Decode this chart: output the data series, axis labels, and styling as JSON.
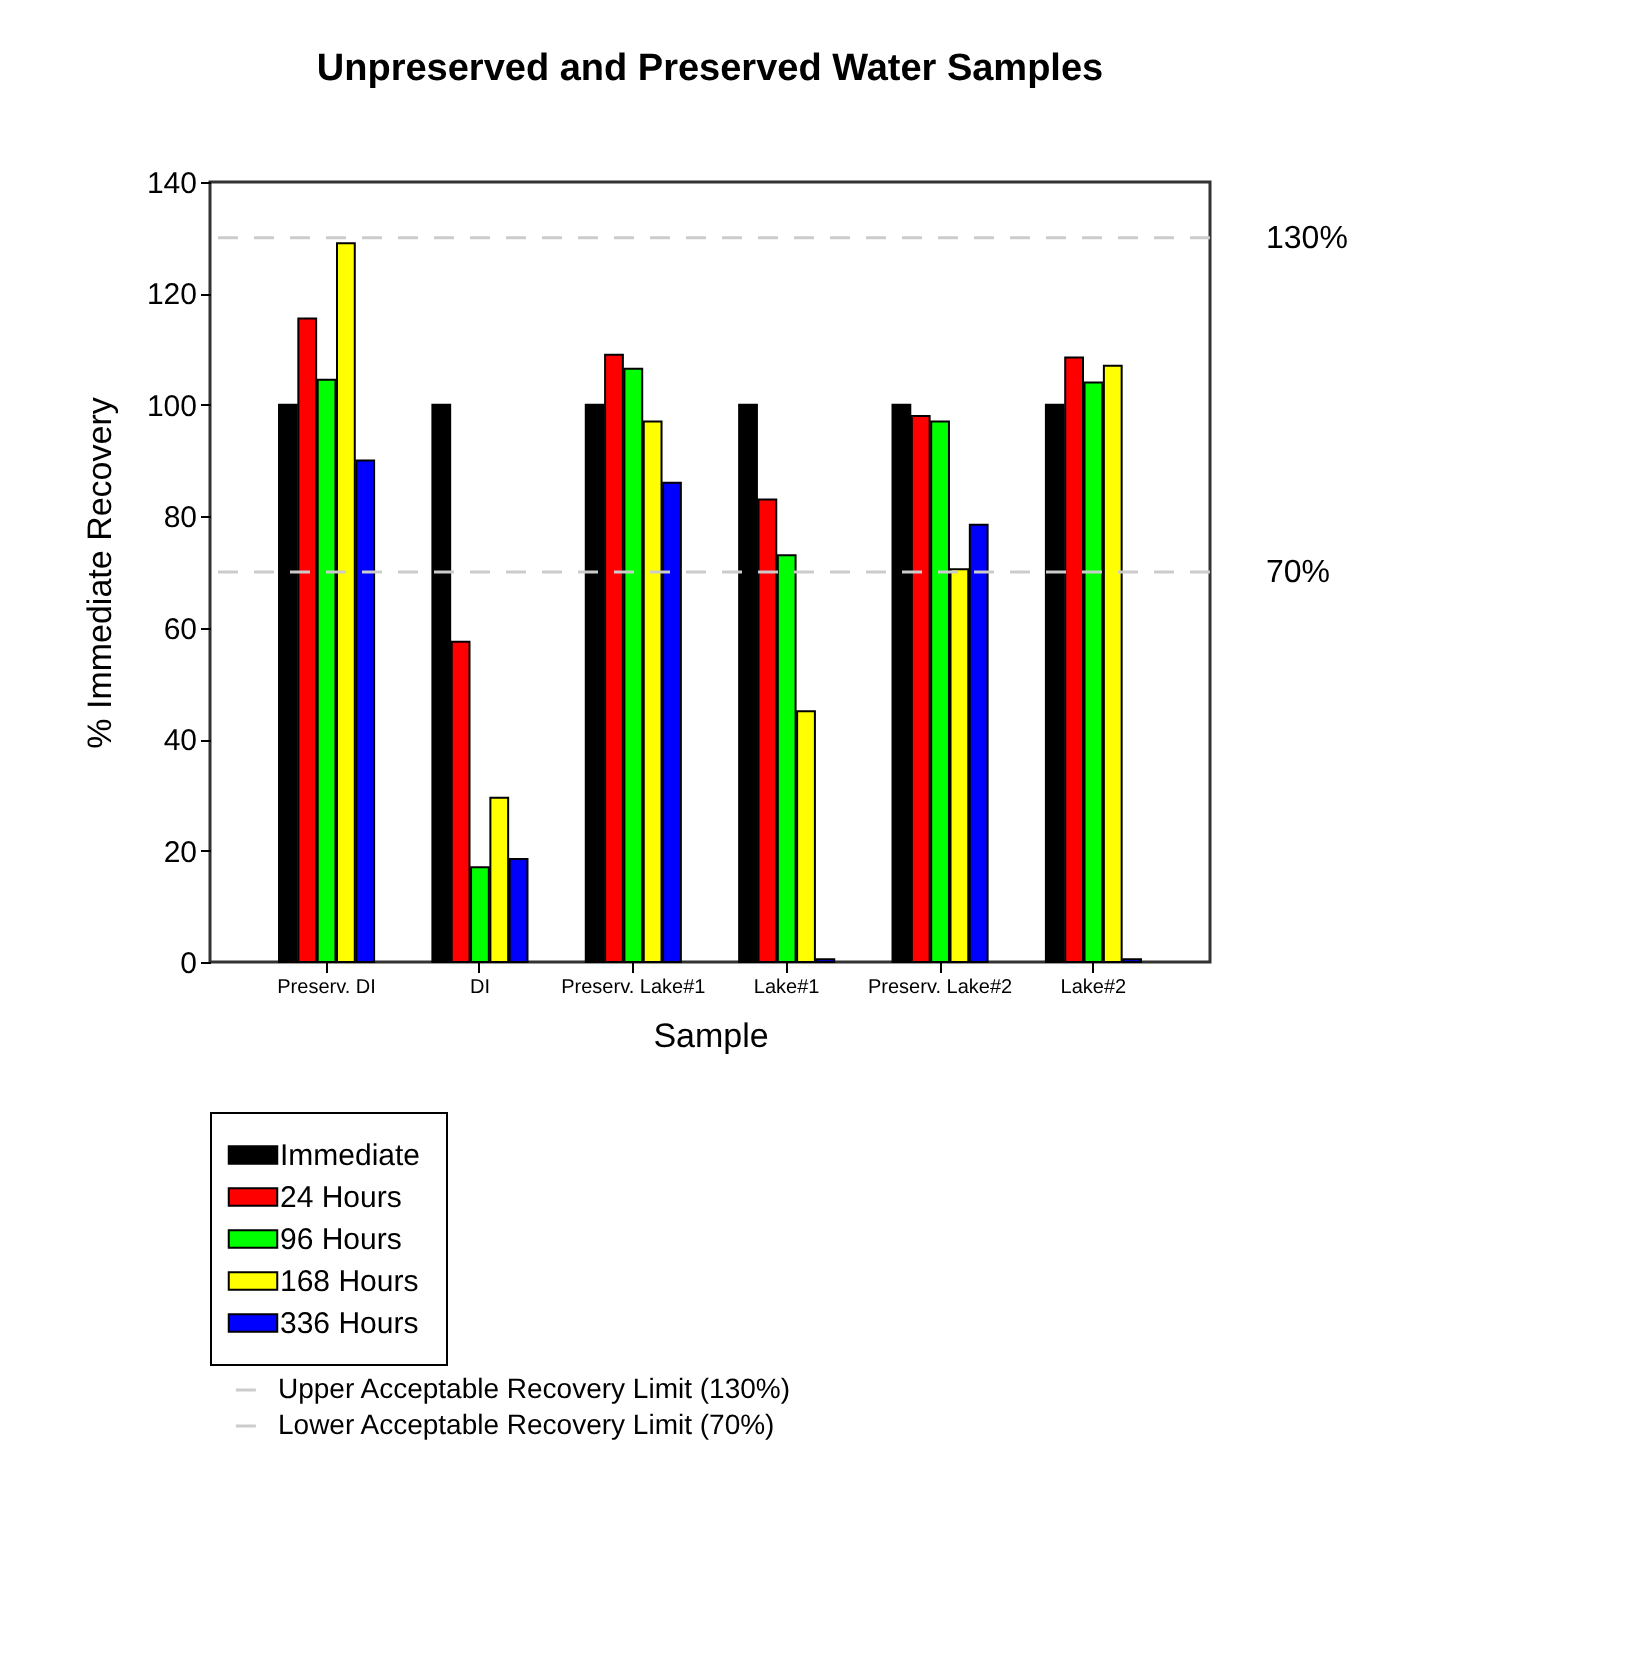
{
  "chart_data": {
    "type": "bar",
    "title": "Unpreserved and Preserved Water Samples",
    "xlabel": "Sample",
    "ylabel": "% Immediate Recovery",
    "categories": [
      "Preserv. DI",
      "DI",
      "Preserv. Lake#1",
      "Lake#1",
      "Preserv. Lake#2",
      "Lake#2"
    ],
    "series": [
      {
        "name": "Immediate",
        "color": "#000000",
        "values": [
          100,
          100,
          100,
          100,
          100,
          100
        ]
      },
      {
        "name": "24 Hours",
        "color": "#ff0000",
        "values": [
          115.5,
          57.5,
          109,
          83,
          98,
          108.5
        ]
      },
      {
        "name": "96 Hours",
        "color": "#00ff00",
        "values": [
          104.5,
          17,
          106.5,
          73,
          97,
          104
        ]
      },
      {
        "name": "168 Hours",
        "color": "#ffff00",
        "values": [
          129,
          29.5,
          97,
          45,
          70.5,
          107
        ]
      },
      {
        "name": "336 Hours",
        "color": "#0000ff",
        "values": [
          90,
          18.5,
          86,
          0.5,
          78.5,
          0.5
        ]
      }
    ],
    "ylim": [
      0,
      140
    ],
    "yticks": [
      0,
      20,
      40,
      60,
      80,
      100,
      120,
      140
    ],
    "ref_lines": [
      {
        "axis": "y",
        "value": 130,
        "label": "Upper Acceptable Recovery Limit (130%)",
        "color": "#cccccc",
        "line_style": "dashed"
      },
      {
        "axis": "y",
        "value": 70,
        "label": "Lower Acceptable Recovery Limit (70%)",
        "color": "#cccccc",
        "line_style": "dashed"
      }
    ],
    "annotations": [
      "130%",
      "70%"
    ],
    "legend": "bottom",
    "grid": false
  }
}
